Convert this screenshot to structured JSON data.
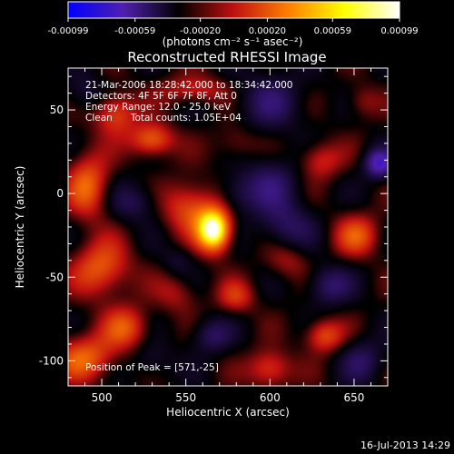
{
  "chart_data": {
    "type": "heatmap",
    "title": "Reconstructed RHESSI Image",
    "xlabel": "Heliocentric X (arcsec)",
    "ylabel": "Heliocentric Y (arcsec)",
    "xlim": [
      480,
      670
    ],
    "ylim": [
      -115,
      75
    ],
    "x_ticks": [
      500,
      550,
      600,
      650
    ],
    "y_ticks": [
      50,
      0,
      -50,
      -100
    ],
    "colorbar": {
      "range": [
        -0.00099,
        0.00099
      ],
      "tick_values": [
        -0.00099,
        -0.00059,
        -0.0002,
        0.0002,
        0.00059,
        0.00099
      ],
      "tick_labels": [
        "-0.00099",
        "-0.00059",
        "-0.00020",
        "0.00020",
        "0.00059",
        "0.00099"
      ],
      "label": "(photons cm⁻² s⁻¹ asec⁻²)",
      "colors": [
        "#0000ff",
        "#5020b0",
        "#000000",
        "#c01010",
        "#ff8000",
        "#ffff00",
        "#ffffff"
      ]
    },
    "annotations": {
      "time": "21-Mar-2006 18:28:42.000 to 18:34:42.000",
      "detectors": "Detectors: 4F 5F 6F 7F 8F, Att 0",
      "energy": "Energy Range: 12.0 - 25.0 keV",
      "method": "Clean      Total counts: 1.05E+04",
      "peak": "Position of Peak = [571,-25]"
    },
    "peak": [
      571,
      -25
    ],
    "sources": [
      {
        "x": 567,
        "y": -22,
        "sx": 7,
        "sy": 9,
        "a": 1.0
      },
      {
        "x": 552,
        "y": -8,
        "sx": 11,
        "sy": 11,
        "a": 0.42
      },
      {
        "x": 530,
        "y": 32,
        "sx": 9,
        "sy": 7,
        "a": 0.5
      },
      {
        "x": 508,
        "y": 48,
        "sx": 9,
        "sy": 9,
        "a": 0.42
      },
      {
        "x": 492,
        "y": 5,
        "sx": 9,
        "sy": 14,
        "a": 0.45
      },
      {
        "x": 555,
        "y": 62,
        "sx": 14,
        "sy": 6,
        "a": 0.3
      },
      {
        "x": 500,
        "y": -45,
        "sx": 12,
        "sy": 12,
        "a": 0.45
      },
      {
        "x": 490,
        "y": -98,
        "sx": 13,
        "sy": 10,
        "a": 0.45
      },
      {
        "x": 515,
        "y": -80,
        "sx": 10,
        "sy": 9,
        "a": 0.38
      },
      {
        "x": 580,
        "y": -62,
        "sx": 8,
        "sy": 7,
        "a": 0.3
      },
      {
        "x": 600,
        "y": -105,
        "sx": 9,
        "sy": 8,
        "a": 0.4
      },
      {
        "x": 632,
        "y": -85,
        "sx": 8,
        "sy": 7,
        "a": 0.42
      },
      {
        "x": 652,
        "y": -25,
        "sx": 10,
        "sy": 9,
        "a": 0.38
      },
      {
        "x": 630,
        "y": 20,
        "sx": 9,
        "sy": 8,
        "a": 0.32
      },
      {
        "x": 610,
        "y": -40,
        "sx": 9,
        "sy": 8,
        "a": 0.22
      },
      {
        "x": 580,
        "y": 30,
        "sx": 9,
        "sy": 8,
        "a": 0.2
      },
      {
        "x": 545,
        "y": -60,
        "sx": 9,
        "sy": 8,
        "a": 0.22
      },
      {
        "x": 655,
        "y": 55,
        "sx": 7,
        "sy": 7,
        "a": 0.2
      },
      {
        "x": 600,
        "y": 55,
        "sx": 14,
        "sy": 12,
        "a": -0.3
      },
      {
        "x": 600,
        "y": 5,
        "sx": 12,
        "sy": 12,
        "a": -0.32
      },
      {
        "x": 665,
        "y": 18,
        "sx": 6,
        "sy": 6,
        "a": -0.65
      },
      {
        "x": 610,
        "y": -20,
        "sx": 11,
        "sy": 10,
        "a": -0.3
      },
      {
        "x": 635,
        "y": -55,
        "sx": 9,
        "sy": 8,
        "a": -0.35
      },
      {
        "x": 565,
        "y": -85,
        "sx": 8,
        "sy": 7,
        "a": -0.3
      },
      {
        "x": 520,
        "y": -5,
        "sx": 10,
        "sy": 8,
        "a": -0.25
      },
      {
        "x": 580,
        "y": 0,
        "sx": 8,
        "sy": 8,
        "a": -0.2
      },
      {
        "x": 545,
        "y": -40,
        "sx": 6,
        "sy": 6,
        "a": -0.15
      },
      {
        "x": 655,
        "y": -100,
        "sx": 9,
        "sy": 9,
        "a": -0.28
      },
      {
        "x": 530,
        "y": -100,
        "sx": 8,
        "sy": 8,
        "a": -0.18
      },
      {
        "x": 490,
        "y": 60,
        "sx": 8,
        "sy": 8,
        "a": -0.2
      }
    ]
  },
  "footer": {
    "date": "16-Jul-2013 14:29"
  }
}
